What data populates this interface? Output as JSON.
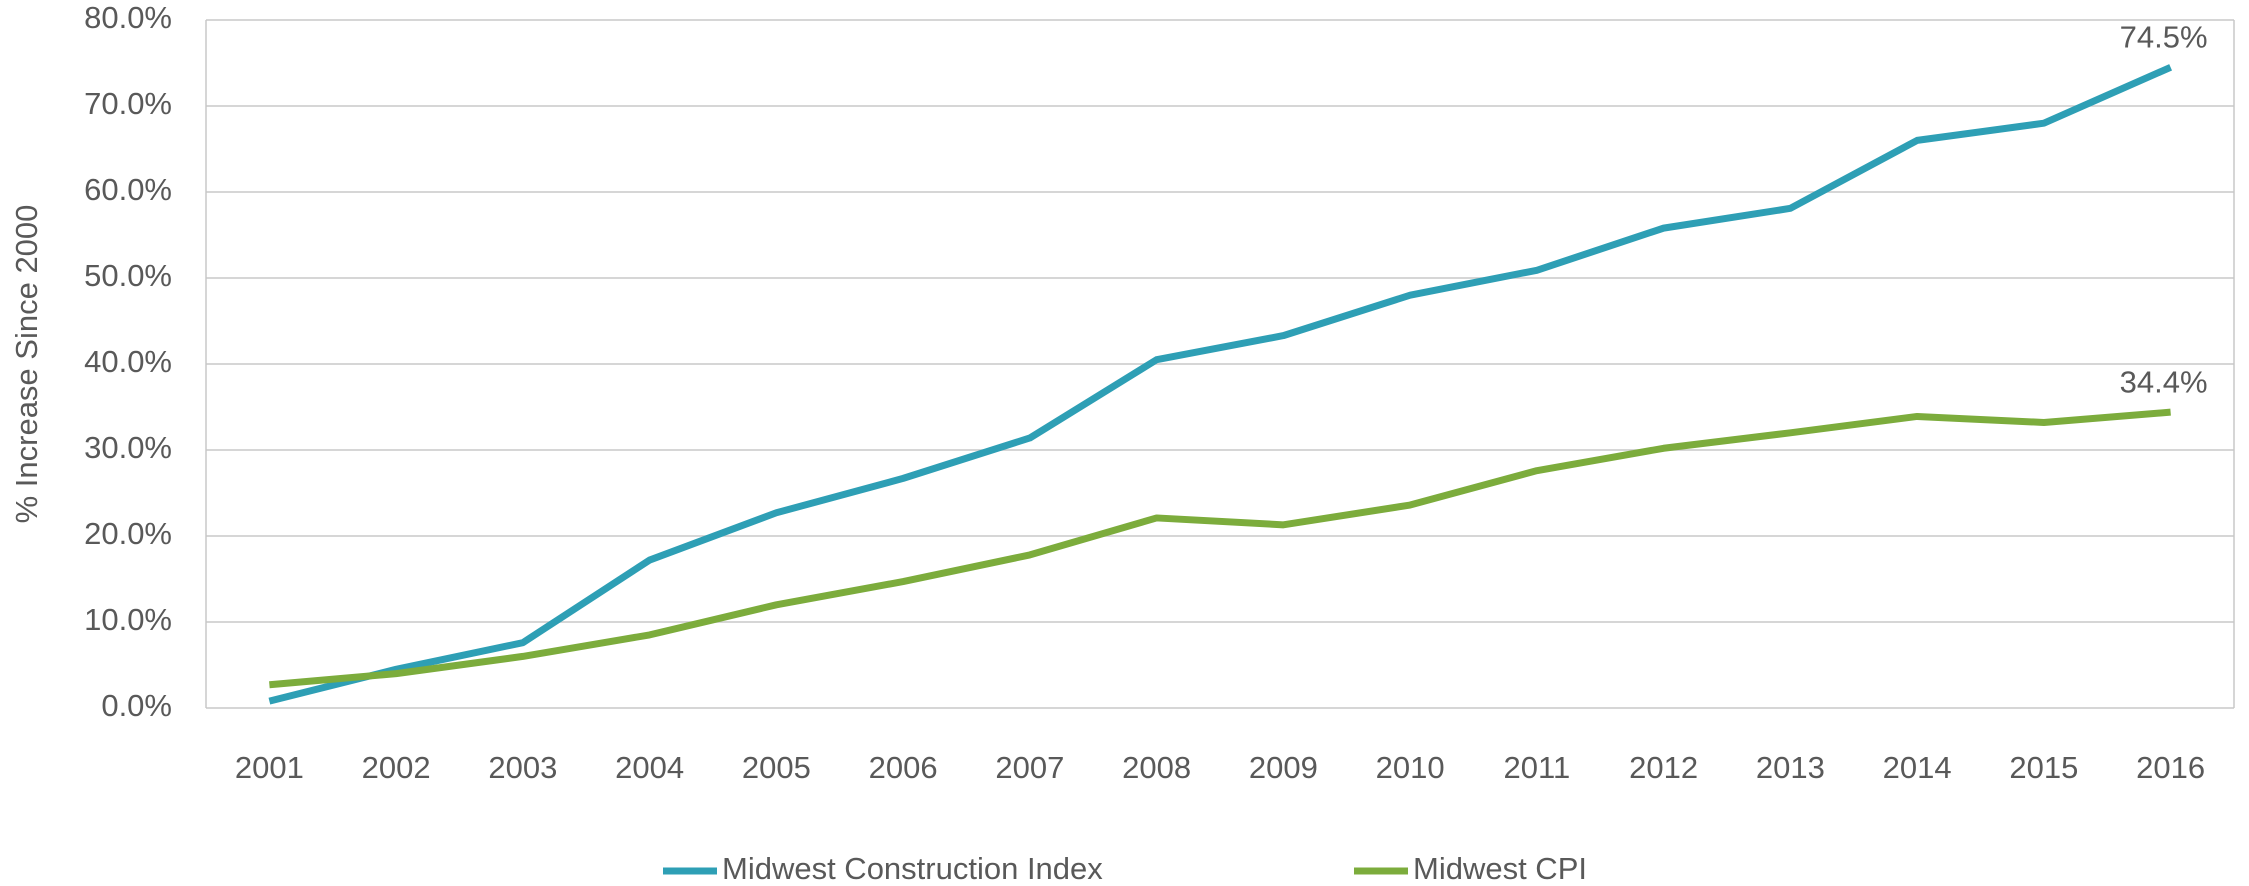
{
  "chart_data": {
    "type": "line",
    "y_label": "% Increase Since 2000",
    "categories": [
      "2001",
      "2002",
      "2003",
      "2004",
      "2005",
      "2006",
      "2007",
      "2008",
      "2009",
      "2010",
      "2011",
      "2012",
      "2013",
      "2014",
      "2015",
      "2016"
    ],
    "series": [
      {
        "name": "Midwest Construction Index",
        "color": "#2e9fb5",
        "values": [
          0.8,
          4.5,
          7.6,
          17.2,
          22.7,
          26.7,
          31.4,
          40.5,
          43.3,
          48.0,
          50.9,
          55.8,
          58.1,
          66.0,
          68.0,
          74.5
        ],
        "value_labels": [
          null,
          null,
          null,
          null,
          null,
          null,
          null,
          null,
          null,
          null,
          null,
          null,
          null,
          null,
          null,
          "74.5%"
        ]
      },
      {
        "name": "Midwest CPI",
        "color": "#7cac3c",
        "values": [
          2.7,
          4.0,
          6.0,
          8.5,
          12.0,
          14.7,
          17.8,
          22.1,
          21.3,
          23.6,
          27.6,
          30.2,
          32.0,
          33.9,
          33.2,
          34.4
        ],
        "value_labels": [
          null,
          null,
          null,
          null,
          null,
          null,
          null,
          null,
          null,
          null,
          null,
          null,
          null,
          null,
          null,
          "34.4%"
        ]
      }
    ],
    "ylim": [
      0,
      80
    ],
    "yticks": [
      {
        "value": 0,
        "label": "0.0%"
      },
      {
        "value": 10,
        "label": "10.0%"
      },
      {
        "value": 20,
        "label": "20.0%"
      },
      {
        "value": 30,
        "label": "30.0%"
      },
      {
        "value": 40,
        "label": "40.0%"
      },
      {
        "value": 50,
        "label": "50.0%"
      },
      {
        "value": 60,
        "label": "60.0%"
      },
      {
        "value": 70,
        "label": "70.0%"
      },
      {
        "value": 80,
        "label": "80.0%"
      }
    ],
    "grid": true,
    "legend": "bottom"
  }
}
